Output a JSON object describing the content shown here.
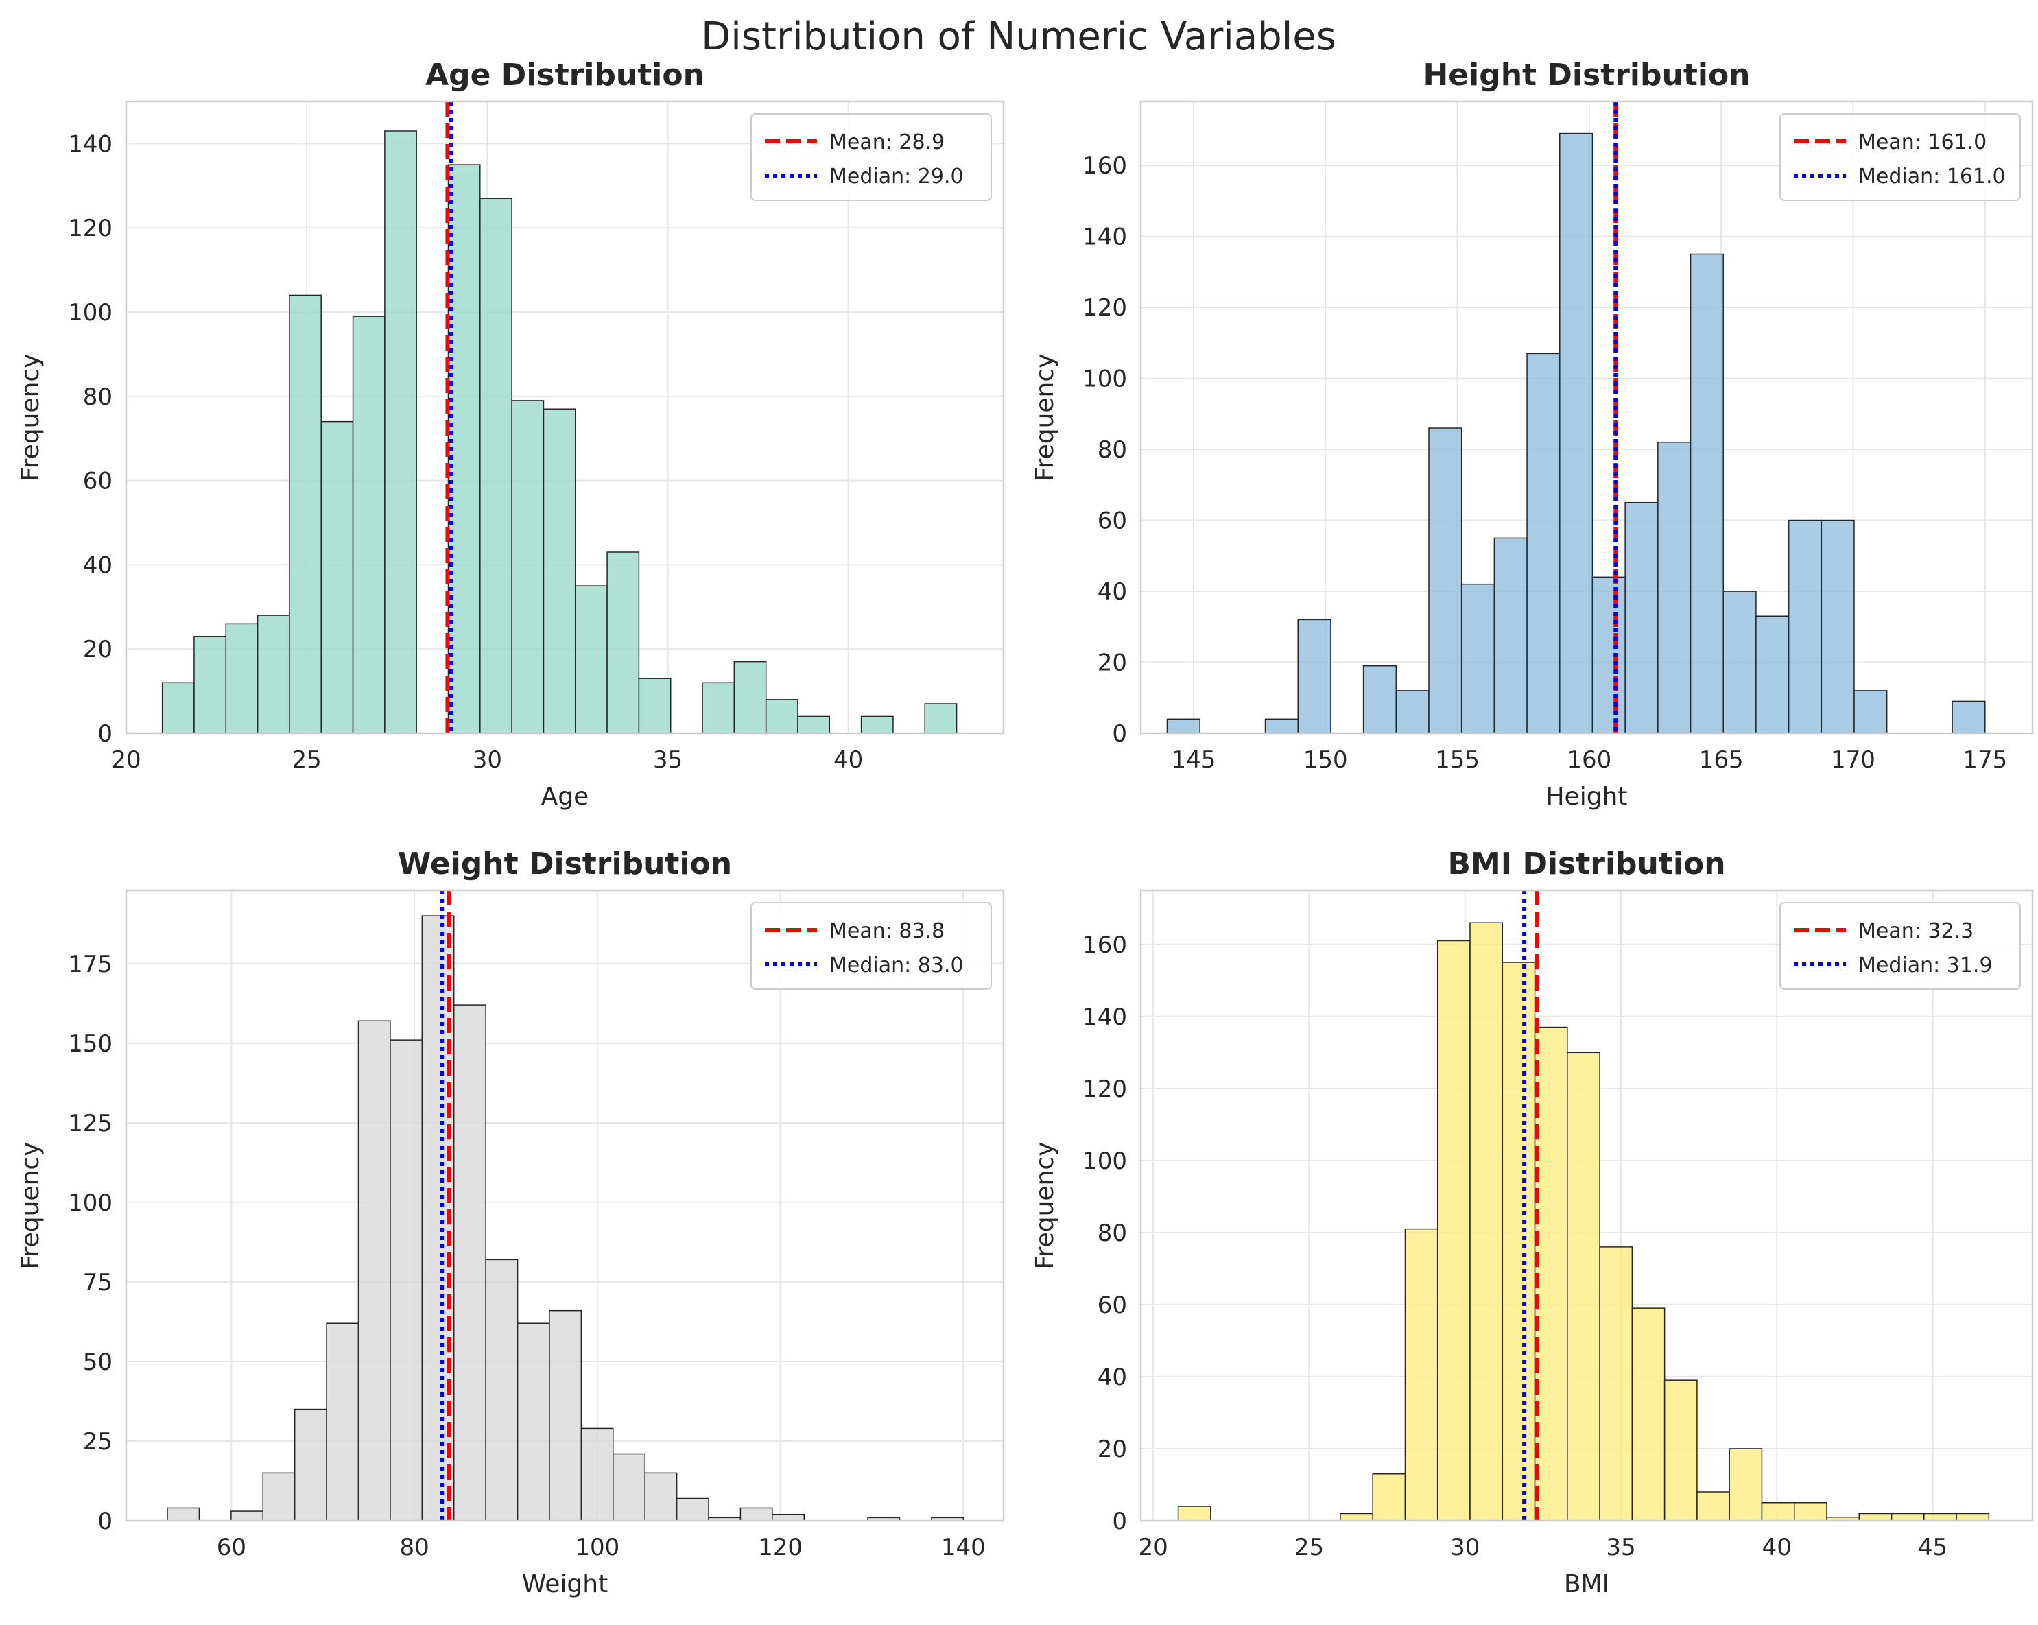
{
  "suptitle": "Distribution of Numeric Variables",
  "chart_data": [
    {
      "type": "bar",
      "title": "Age Distribution",
      "xlabel": "Age",
      "ylabel": "Frequency",
      "xlim": [
        20,
        44.3
      ],
      "ylim": [
        0,
        150
      ],
      "xticks": [
        20,
        25,
        30,
        35,
        40
      ],
      "yticks": [
        0,
        20,
        40,
        60,
        80,
        100,
        120,
        140
      ],
      "color": "#99d8c9",
      "bins": {
        "start": 21,
        "width": 0.88,
        "counts": [
          12,
          23,
          26,
          28,
          104,
          74,
          99,
          143,
          0,
          135,
          127,
          79,
          77,
          35,
          43,
          13,
          0,
          12,
          17,
          8,
          4,
          0,
          4,
          0,
          7
        ]
      },
      "mean": 28.9,
      "median": 29.0,
      "legend": {
        "position": "top-right",
        "entries": [
          "Mean: 28.9",
          "Median: 29.0"
        ]
      },
      "grid": true
    },
    {
      "type": "bar",
      "title": "Height Distribution",
      "xlabel": "Height",
      "ylabel": "Frequency",
      "xlim": [
        143,
        176.8
      ],
      "ylim": [
        0,
        178
      ],
      "xticks": [
        145,
        150,
        155,
        160,
        165,
        170,
        175
      ],
      "yticks": [
        0,
        20,
        40,
        60,
        80,
        100,
        120,
        140,
        160
      ],
      "color": "#91bcdc",
      "bins": {
        "start": 144,
        "width": 1.24,
        "counts": [
          4,
          0,
          0,
          4,
          32,
          0,
          19,
          12,
          86,
          42,
          55,
          107,
          169,
          44,
          65,
          82,
          135,
          40,
          33,
          60,
          60,
          12,
          0,
          0,
          9
        ]
      },
      "mean": 161.0,
      "median": 161.0,
      "legend": {
        "position": "top-right",
        "entries": [
          "Mean: 161.0",
          "Median: 161.0"
        ]
      },
      "grid": true
    },
    {
      "type": "bar",
      "title": "Weight Distribution",
      "xlabel": "Weight",
      "ylabel": "Frequency",
      "xlim": [
        48.5,
        144.4
      ],
      "ylim": [
        0,
        198
      ],
      "xticks": [
        60,
        80,
        100,
        120,
        140
      ],
      "yticks": [
        0,
        25,
        50,
        75,
        100,
        125,
        150,
        175
      ],
      "color": "#d9d9d9",
      "bins": {
        "start": 53,
        "width": 3.48,
        "counts": [
          4,
          0,
          3,
          15,
          35,
          62,
          157,
          151,
          190,
          162,
          82,
          62,
          66,
          29,
          21,
          15,
          7,
          1,
          4,
          2,
          0,
          0,
          1,
          0,
          1
        ]
      },
      "mean": 83.8,
      "median": 83.0,
      "legend": {
        "position": "top-right",
        "entries": [
          "Mean: 83.8",
          "Median: 83.0"
        ]
      },
      "grid": true
    },
    {
      "type": "bar",
      "title": "BMI Distribution",
      "xlabel": "BMI",
      "ylabel": "Frequency",
      "xlim": [
        19.6,
        48.2
      ],
      "ylim": [
        0,
        175
      ],
      "xticks": [
        20,
        25,
        30,
        35,
        40,
        45
      ],
      "yticks": [
        0,
        20,
        40,
        60,
        80,
        100,
        120,
        140,
        160
      ],
      "color": "#ffec80",
      "bins": {
        "start": 20.8,
        "width": 1.04,
        "counts": [
          4,
          0,
          0,
          0,
          0,
          2,
          13,
          81,
          161,
          166,
          155,
          137,
          130,
          76,
          59,
          39,
          8,
          20,
          5,
          5,
          1,
          2,
          2,
          2,
          2
        ]
      },
      "mean": 32.3,
      "median": 31.9,
      "legend": {
        "position": "top-right",
        "entries": [
          "Mean: 32.3",
          "Median: 31.9"
        ]
      },
      "grid": true
    }
  ],
  "colors": {
    "mean_line": "#ff0000",
    "median_line": "#0000ff",
    "edge": "#262626"
  }
}
